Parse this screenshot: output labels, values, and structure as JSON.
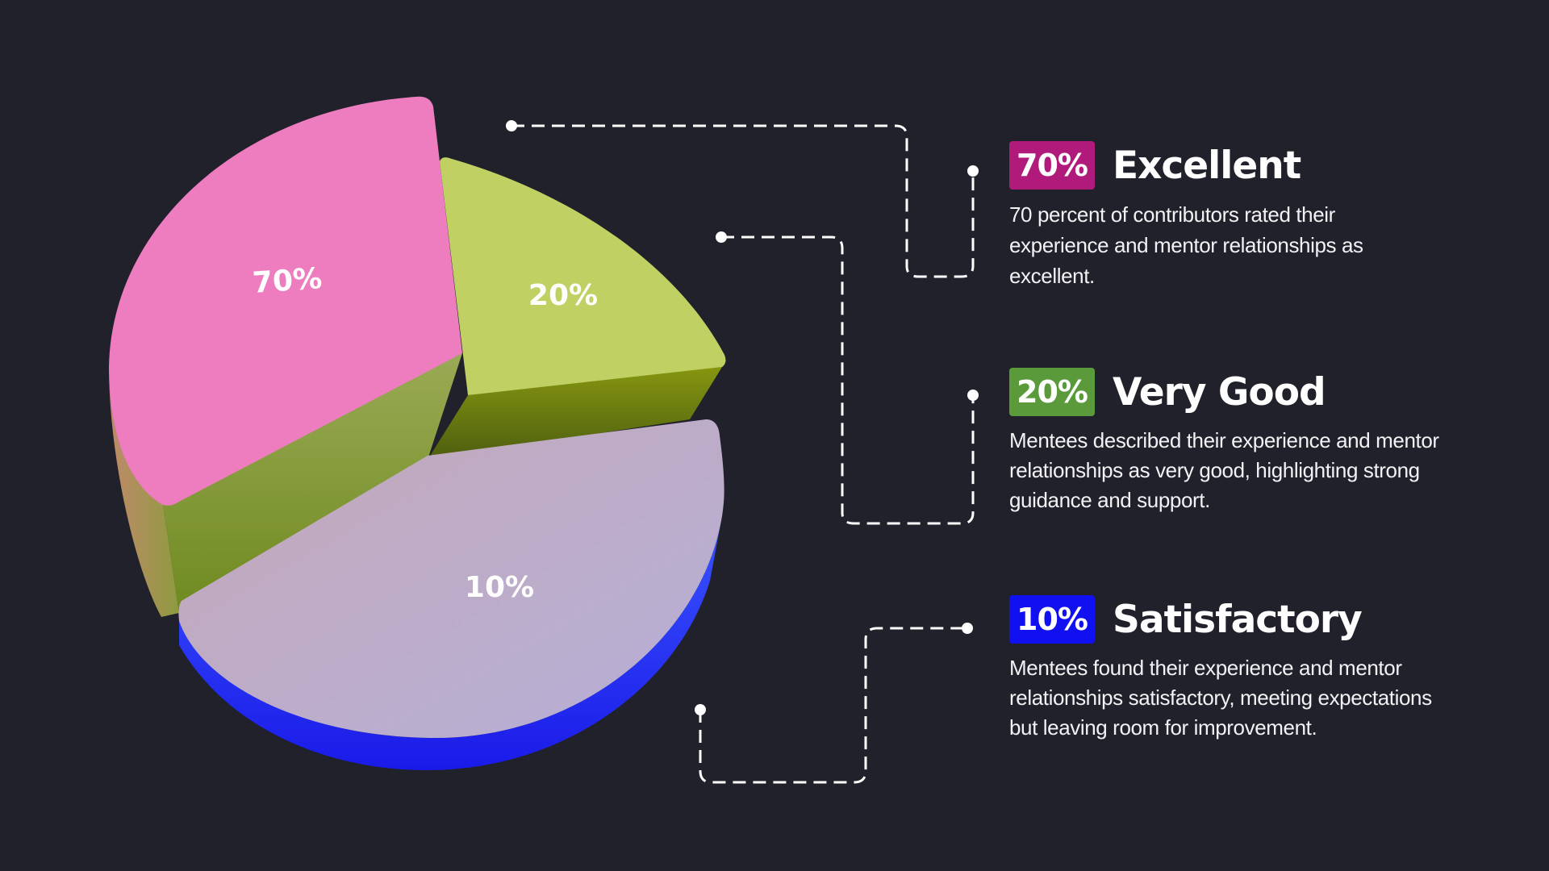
{
  "colors": {
    "background": "#20212b",
    "excellent": "#b01a7b",
    "very_good": "#5a9a3a",
    "satisfactory": "#1010f0"
  },
  "chart_data": {
    "type": "pie",
    "style": "3d",
    "categories": [
      "Excellent",
      "Very Good",
      "Satisfactory"
    ],
    "values": [
      70,
      20,
      10
    ],
    "slice_labels": [
      "70%",
      "20%",
      "10%"
    ],
    "slice_colors": [
      "#ee7dbf",
      "#c0d062",
      "#c0b3c8"
    ]
  },
  "items": [
    {
      "percent": "70%",
      "title": "Excellent",
      "description": "70 percent of contributors rated their experience and mentor relationships as excellent."
    },
    {
      "percent": "20%",
      "title": "Very Good",
      "description": "Mentees described their experience and mentor relationships as very good, highlighting strong guidance and support."
    },
    {
      "percent": "10%",
      "title": "Satisfactory",
      "description": "Mentees found their experience and mentor relationships satisfactory, meeting expectations but leaving room for improvement."
    }
  ]
}
